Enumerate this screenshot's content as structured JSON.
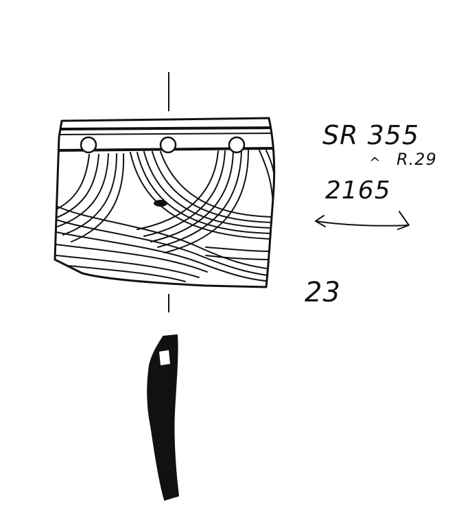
{
  "annotations": {
    "site_code": "SR 355",
    "room_ref": "R.29",
    "caret": "^",
    "context_no": "2165",
    "catalogue_no": "23"
  },
  "colors": {
    "ink": "#111111",
    "paper": "#ffffff"
  }
}
